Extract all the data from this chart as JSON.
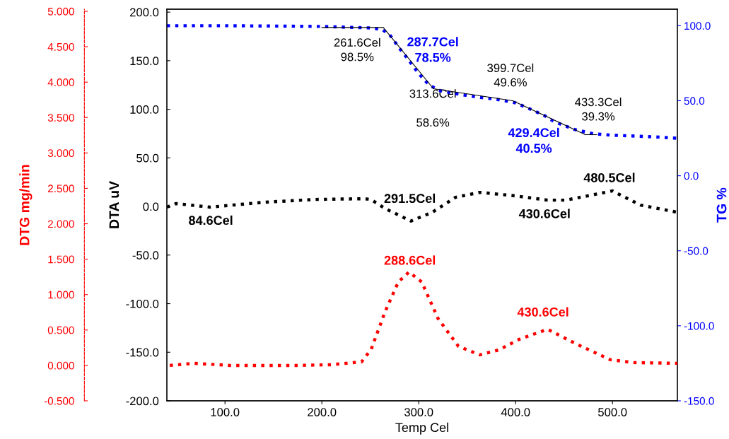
{
  "chart_data": {
    "type": "line",
    "xlabel": "Temp Cel",
    "ylabel": "DTA uV",
    "y2label": "TG %",
    "y3label": "DTG mg/min",
    "xlim": [
      40,
      567
    ],
    "xticks": [
      {
        "value": 100,
        "label": "100.0"
      },
      {
        "value": 200,
        "label": "200.0"
      },
      {
        "value": 300,
        "label": "300.0"
      },
      {
        "value": 400,
        "label": "400.0"
      },
      {
        "value": 500,
        "label": "500.0"
      }
    ],
    "ylim": [
      -200,
      203
    ],
    "yticks": [
      {
        "value": -200,
        "label": "-200.0"
      },
      {
        "value": -150,
        "label": "-150.0"
      },
      {
        "value": -100,
        "label": "-100.0"
      },
      {
        "value": -50,
        "label": "-50.0"
      },
      {
        "value": 0,
        "label": "0.0"
      },
      {
        "value": 50,
        "label": "50.0"
      },
      {
        "value": 100,
        "label": "100.0"
      },
      {
        "value": 150,
        "label": "150.0"
      },
      {
        "value": 200,
        "label": "200.0"
      }
    ],
    "y2lim": [
      -150,
      111
    ],
    "y2ticks": [
      {
        "value": -150,
        "label": "-150.0"
      },
      {
        "value": -100,
        "label": "-100.0"
      },
      {
        "value": -50,
        "label": "-50.0"
      },
      {
        "value": 0,
        "label": "0.0"
      },
      {
        "value": 50,
        "label": "50.0"
      },
      {
        "value": 100,
        "label": "100.0"
      }
    ],
    "y3lim": [
      -0.5,
      5.03
    ],
    "y3ticks": [
      {
        "value": -0.5,
        "label": "-0.500"
      },
      {
        "value": 0,
        "label": "0.000"
      },
      {
        "value": 0.5,
        "label": "0.500"
      },
      {
        "value": 1,
        "label": "1.000"
      },
      {
        "value": 1.5,
        "label": "1.500"
      },
      {
        "value": 2,
        "label": "2.000"
      },
      {
        "value": 2.5,
        "label": "2.500"
      },
      {
        "value": 3,
        "label": "3.000"
      },
      {
        "value": 3.5,
        "label": "3.500"
      },
      {
        "value": 4,
        "label": "4.000"
      },
      {
        "value": 4.5,
        "label": "4.500"
      },
      {
        "value": 5,
        "label": "5.000"
      }
    ],
    "grid": false,
    "marker": "none",
    "annotations": [
      "287.7Cel\n78.5%",
      "429.4Cel\n40.5%",
      "261.6Cel\n98.5%",
      "313.6Cel\n\n58.6%",
      "399.7Cel\n49.6%",
      "433.3Cel\n39.3%",
      "84.6Cel",
      "291.5Cel",
      "430.6Cel",
      "480.5Cel",
      "288.6Cel",
      "430.6Cel"
    ],
    "series": [
      {
        "axis": "y2",
        "color": "#0000ff",
        "line_style": "dotted",
        "x": [
          40,
          100,
          200,
          250,
          262,
          270,
          280,
          288,
          300,
          310,
          320,
          340,
          360,
          380,
          400,
          420,
          430,
          440,
          460,
          480,
          500,
          540,
          567
        ],
        "values": [
          100,
          100,
          99.5,
          98.5,
          97.5,
          94,
          85,
          78.5,
          68,
          61,
          57,
          54.5,
          52.5,
          51,
          48.6,
          43,
          40,
          36,
          31,
          28,
          27,
          26,
          25
        ]
      },
      {
        "axis": "y2",
        "color": "#000000",
        "line_style": "solid",
        "x": [
          200,
          263.4,
          315.2,
          397,
          472,
          483.8
        ],
        "values": [
          98.8,
          98.8,
          58,
          50,
          27.4,
          27.4
        ]
      },
      {
        "axis": "y",
        "color": "#000000",
        "line_style": "dotted",
        "x": [
          40,
          49.5,
          84.6,
          140,
          192,
          244,
          251,
          265,
          292,
          314,
          338,
          363,
          400,
          433,
          452,
          500,
          529,
          567
        ],
        "values": [
          -0.7,
          3,
          -0.7,
          4.3,
          7.2,
          8,
          7,
          -2,
          -15,
          -6,
          9.4,
          14.5,
          10.9,
          6.5,
          6.5,
          16,
          1.4,
          -6
        ]
      },
      {
        "axis": "y3",
        "color": "#ff0000",
        "line_style": "dotted",
        "x": [
          43,
          68,
          105,
          174,
          209,
          241,
          251,
          265,
          279,
          290,
          303,
          320,
          341,
          363,
          383,
          404,
          433,
          463,
          498,
          522,
          567
        ],
        "values": [
          0,
          0.03,
          0,
          0,
          0.01,
          0.05,
          0.23,
          0.75,
          1.18,
          1.32,
          1.18,
          0.66,
          0.27,
          0.15,
          0.22,
          0.37,
          0.51,
          0.3,
          0.08,
          0.04,
          0.03
        ]
      }
    ]
  }
}
